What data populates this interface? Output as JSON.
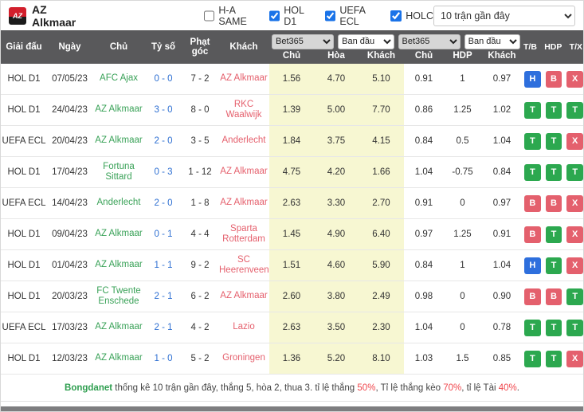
{
  "colors": {
    "blue": "#2e6fdd",
    "green": "#2ca84f",
    "red": "#e4606d",
    "accent": "#1a73e8",
    "header_bg": "#59595b",
    "odds_highlight_bg": "#f7f7d2",
    "home_team_green": "#3aa258",
    "away_team_red": "#e5606d",
    "score_blue": "#2d6fd2"
  },
  "header": {
    "team_name": "AZ Alkmaar",
    "logo_text": "AZ",
    "filters": [
      {
        "label": "H-A SAME",
        "checked": false
      },
      {
        "label": "HOL D1",
        "checked": true
      },
      {
        "label": "UEFA ECL",
        "checked": true
      },
      {
        "label": "HOLC",
        "checked": true
      }
    ],
    "range_select": "10 trận gần đây"
  },
  "table": {
    "left_headers": [
      "Giải đấu",
      "Ngày",
      "Chủ",
      "Tỷ số",
      "Phạt góc",
      "Khách"
    ],
    "selects": [
      "Bet365",
      "Ban đầu",
      "Bet365",
      "Ban đầu"
    ],
    "sub_headers": [
      "Chủ",
      "Hòa",
      "Khách",
      "Chủ",
      "HDP",
      "Khách"
    ],
    "right_headers": [
      "T/B",
      "HDP",
      "T/X"
    ]
  },
  "rows": [
    {
      "league": "HOL D1",
      "date": "07/05/23",
      "home": "AFC Ajax",
      "score": "0 - 0",
      "corner": "7 - 2",
      "away": "AZ Alkmaar",
      "euro_odds": [
        "1.56",
        "4.70",
        "5.10"
      ],
      "asian_odds": [
        "0.91",
        "1",
        "0.97"
      ],
      "badges": [
        {
          "label": "H",
          "color": "blue"
        },
        {
          "label": "B",
          "color": "red"
        },
        {
          "label": "X",
          "color": "red"
        }
      ]
    },
    {
      "league": "HOL D1",
      "date": "24/04/23",
      "home": "AZ Alkmaar",
      "score": "3 - 0",
      "corner": "8 - 0",
      "away": "RKC Waalwijk",
      "euro_odds": [
        "1.39",
        "5.00",
        "7.70"
      ],
      "asian_odds": [
        "0.86",
        "1.25",
        "1.02"
      ],
      "badges": [
        {
          "label": "T",
          "color": "green"
        },
        {
          "label": "T",
          "color": "green"
        },
        {
          "label": "T",
          "color": "green"
        }
      ]
    },
    {
      "league": "UEFA ECL",
      "date": "20/04/23",
      "home": "AZ Alkmaar",
      "score": "2 - 0",
      "corner": "3 - 5",
      "away": "Anderlecht",
      "euro_odds": [
        "1.84",
        "3.75",
        "4.15"
      ],
      "asian_odds": [
        "0.84",
        "0.5",
        "1.04"
      ],
      "badges": [
        {
          "label": "T",
          "color": "green"
        },
        {
          "label": "T",
          "color": "green"
        },
        {
          "label": "X",
          "color": "red"
        }
      ]
    },
    {
      "league": "HOL D1",
      "date": "17/04/23",
      "home": "Fortuna Sittard",
      "score": "0 - 3",
      "corner": "1 - 12",
      "away": "AZ Alkmaar",
      "euro_odds": [
        "4.75",
        "4.20",
        "1.66"
      ],
      "asian_odds": [
        "1.04",
        "-0.75",
        "0.84"
      ],
      "badges": [
        {
          "label": "T",
          "color": "green"
        },
        {
          "label": "T",
          "color": "green"
        },
        {
          "label": "T",
          "color": "green"
        }
      ]
    },
    {
      "league": "UEFA ECL",
      "date": "14/04/23",
      "home": "Anderlecht",
      "score": "2 - 0",
      "corner": "1 - 8",
      "away": "AZ Alkmaar",
      "euro_odds": [
        "2.63",
        "3.30",
        "2.70"
      ],
      "asian_odds": [
        "0.91",
        "0",
        "0.97"
      ],
      "badges": [
        {
          "label": "B",
          "color": "red"
        },
        {
          "label": "B",
          "color": "red"
        },
        {
          "label": "X",
          "color": "red"
        }
      ]
    },
    {
      "league": "HOL D1",
      "date": "09/04/23",
      "home": "AZ Alkmaar",
      "score": "0 - 1",
      "corner": "4 - 4",
      "away": "Sparta Rotterdam",
      "euro_odds": [
        "1.45",
        "4.90",
        "6.40"
      ],
      "asian_odds": [
        "0.97",
        "1.25",
        "0.91"
      ],
      "badges": [
        {
          "label": "B",
          "color": "red"
        },
        {
          "label": "T",
          "color": "green"
        },
        {
          "label": "X",
          "color": "red"
        }
      ]
    },
    {
      "league": "HOL D1",
      "date": "01/04/23",
      "home": "AZ Alkmaar",
      "score": "1 - 1",
      "corner": "9 - 2",
      "away": "SC Heerenveen",
      "euro_odds": [
        "1.51",
        "4.60",
        "5.90"
      ],
      "asian_odds": [
        "0.84",
        "1",
        "1.04"
      ],
      "badges": [
        {
          "label": "H",
          "color": "blue"
        },
        {
          "label": "T",
          "color": "green"
        },
        {
          "label": "X",
          "color": "red"
        }
      ]
    },
    {
      "league": "HOL D1",
      "date": "20/03/23",
      "home": "FC Twente Enschede",
      "score": "2 - 1",
      "corner": "6 - 2",
      "away": "AZ Alkmaar",
      "euro_odds": [
        "2.60",
        "3.80",
        "2.49"
      ],
      "asian_odds": [
        "0.98",
        "0",
        "0.90"
      ],
      "badges": [
        {
          "label": "B",
          "color": "red"
        },
        {
          "label": "B",
          "color": "red"
        },
        {
          "label": "T",
          "color": "green"
        }
      ]
    },
    {
      "league": "UEFA ECL",
      "date": "17/03/23",
      "home": "AZ Alkmaar",
      "score": "2 - 1",
      "corner": "4 - 2",
      "away": "Lazio",
      "euro_odds": [
        "2.63",
        "3.50",
        "2.30"
      ],
      "asian_odds": [
        "1.04",
        "0",
        "0.78"
      ],
      "badges": [
        {
          "label": "T",
          "color": "green"
        },
        {
          "label": "T",
          "color": "green"
        },
        {
          "label": "T",
          "color": "green"
        }
      ]
    },
    {
      "league": "HOL D1",
      "date": "12/03/23",
      "home": "AZ Alkmaar",
      "score": "1 - 0",
      "corner": "5 - 2",
      "away": "Groningen",
      "euro_odds": [
        "1.36",
        "5.20",
        "8.10"
      ],
      "asian_odds": [
        "1.03",
        "1.5",
        "0.85"
      ],
      "badges": [
        {
          "label": "T",
          "color": "green"
        },
        {
          "label": "T",
          "color": "green"
        },
        {
          "label": "X",
          "color": "red"
        }
      ]
    }
  ],
  "footer": {
    "segments": [
      {
        "text": "Bongdanet",
        "style": "brand"
      },
      {
        "text": " thống kê 10 trận gần đây, thắng 5, hòa 2, thua 3. tỉ lệ thắng ",
        "style": "normal"
      },
      {
        "text": "50%",
        "style": "red"
      },
      {
        "text": ", Tỉ lệ thắng kèo ",
        "style": "normal"
      },
      {
        "text": "70%",
        "style": "red"
      },
      {
        "text": ", tỉ lệ Tài ",
        "style": "normal"
      },
      {
        "text": "40%",
        "style": "red"
      },
      {
        "text": ".",
        "style": "normal"
      }
    ]
  }
}
